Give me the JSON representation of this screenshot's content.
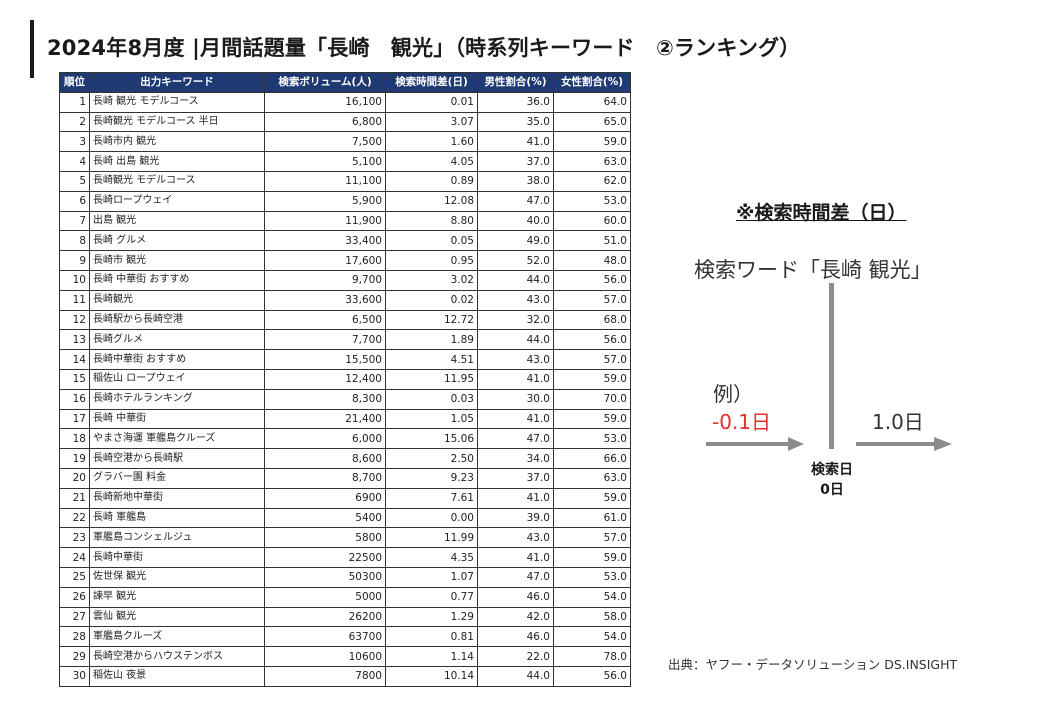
{
  "title": "2024年8月度 |月間話題量「長崎　観光」（時系列キーワード　②ランキング）",
  "table": {
    "headers": [
      "順位",
      "出力キーワード",
      "検索ボリューム(人)",
      "検索時間差(日)",
      "男性割合(%)",
      "女性割合(%)"
    ],
    "rows": [
      [
        "1",
        "長崎 観光 モデルコース",
        "16,100",
        "0.01",
        "36.0",
        "64.0"
      ],
      [
        "2",
        "長崎観光 モデルコース 半日",
        "6,800",
        "3.07",
        "35.0",
        "65.0"
      ],
      [
        "3",
        "長崎市内 観光",
        "7,500",
        "1.60",
        "41.0",
        "59.0"
      ],
      [
        "4",
        "長崎 出島 観光",
        "5,100",
        "4.05",
        "37.0",
        "63.0"
      ],
      [
        "5",
        "長崎観光 モデルコース",
        "11,100",
        "0.89",
        "38.0",
        "62.0"
      ],
      [
        "6",
        "長崎ロープウェイ",
        "5,900",
        "12.08",
        "47.0",
        "53.0"
      ],
      [
        "7",
        "出島 観光",
        "11,900",
        "8.80",
        "40.0",
        "60.0"
      ],
      [
        "8",
        "長崎 グルメ",
        "33,400",
        "0.05",
        "49.0",
        "51.0"
      ],
      [
        "9",
        "長崎市 観光",
        "17,600",
        "0.95",
        "52.0",
        "48.0"
      ],
      [
        "10",
        "長崎 中華街 おすすめ",
        "9,700",
        "3.02",
        "44.0",
        "56.0"
      ],
      [
        "11",
        "長崎観光",
        "33,600",
        "0.02",
        "43.0",
        "57.0"
      ],
      [
        "12",
        "長崎駅から長崎空港",
        "6,500",
        "12.72",
        "32.0",
        "68.0"
      ],
      [
        "13",
        "長崎グルメ",
        "7,700",
        "1.89",
        "44.0",
        "56.0"
      ],
      [
        "14",
        "長崎中華街 おすすめ",
        "15,500",
        "4.51",
        "43.0",
        "57.0"
      ],
      [
        "15",
        "稲佐山 ロープウェイ",
        "12,400",
        "11.95",
        "41.0",
        "59.0"
      ],
      [
        "16",
        "長崎ホテルランキング",
        "8,300",
        "0.03",
        "30.0",
        "70.0"
      ],
      [
        "17",
        "長崎 中華街",
        "21,400",
        "1.05",
        "41.0",
        "59.0"
      ],
      [
        "18",
        "やまさ海運 軍艦島クルーズ",
        "6,000",
        "15.06",
        "47.0",
        "53.0"
      ],
      [
        "19",
        "長崎空港から長崎駅",
        "8,600",
        "2.50",
        "34.0",
        "66.0"
      ],
      [
        "20",
        "グラバー園 料金",
        "8,700",
        "9.23",
        "37.0",
        "63.0"
      ],
      [
        "21",
        "長崎新地中華街",
        "6900",
        "7.61",
        "41.0",
        "59.0"
      ],
      [
        "22",
        "長崎 軍艦島",
        "5400",
        "0.00",
        "39.0",
        "61.0"
      ],
      [
        "23",
        "軍艦島コンシェルジュ",
        "5800",
        "11.99",
        "43.0",
        "57.0"
      ],
      [
        "24",
        "長崎中華街",
        "22500",
        "4.35",
        "41.0",
        "59.0"
      ],
      [
        "25",
        "佐世保 観光",
        "50300",
        "1.07",
        "47.0",
        "53.0"
      ],
      [
        "26",
        "諫早 観光",
        "5000",
        "0.77",
        "46.0",
        "54.0"
      ],
      [
        "27",
        "雲仙 観光",
        "26200",
        "1.29",
        "42.0",
        "58.0"
      ],
      [
        "28",
        "軍艦島クルーズ",
        "63700",
        "0.81",
        "46.0",
        "54.0"
      ],
      [
        "29",
        "長崎空港からハウステンボス",
        "10600",
        "1.14",
        "22.0",
        "78.0"
      ],
      [
        "30",
        "稲佐山 夜景",
        "7800",
        "10.14",
        "44.0",
        "56.0"
      ]
    ]
  },
  "note": {
    "title": "※検索時間差（日）",
    "keyword_label": "検索ワード「長崎 観光」",
    "example_label": "例）",
    "minus_label": "-0.1日",
    "plus_label": "1.0日",
    "search_day_line1": "検索日",
    "search_day_line2": "0日"
  },
  "source": "出典：ヤフー・データソリューション DS.INSIGHT",
  "colors": {
    "header_bg": "#1f3a72",
    "accent_red": "#e0312b",
    "arrow_gray": "#8c8c8c"
  }
}
